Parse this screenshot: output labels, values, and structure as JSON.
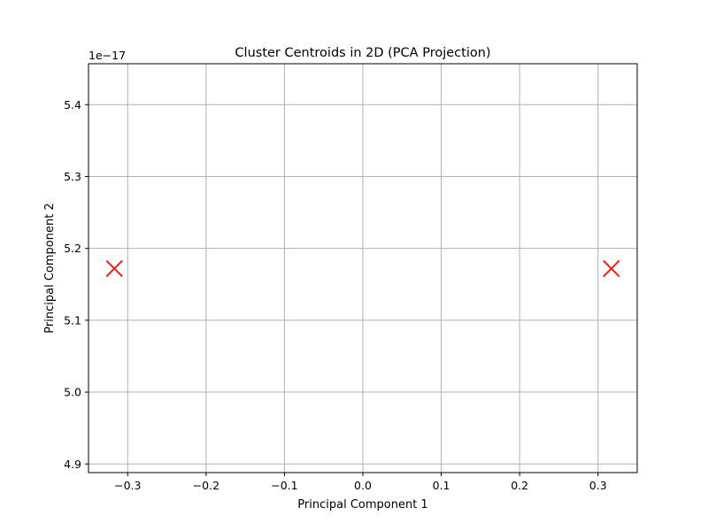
{
  "chart_data": {
    "type": "scatter",
    "title": "Cluster Centroids in 2D (PCA Projection)",
    "xlabel": "Principal Component 1",
    "ylabel": "Principal Component 2",
    "y_offset_label": "1e−17",
    "xlim": [
      -0.35,
      0.35
    ],
    "ylim": [
      4.888,
      5.457
    ],
    "x_ticks": [
      -0.3,
      -0.2,
      -0.1,
      0.0,
      0.1,
      0.2,
      0.3
    ],
    "x_tick_labels": [
      "−0.3",
      "−0.2",
      "−0.1",
      "0.0",
      "0.1",
      "0.2",
      "0.3"
    ],
    "y_ticks": [
      4.9,
      5.0,
      5.1,
      5.2,
      5.3,
      5.4
    ],
    "y_tick_labels": [
      "4.9",
      "5.0",
      "5.1",
      "5.2",
      "5.3",
      "5.4"
    ],
    "grid": true,
    "marker": "x",
    "marker_color": "#e8201a",
    "grid_color": "#b0b0b0",
    "points": [
      {
        "x": -0.317,
        "y": 5.172
      },
      {
        "x": 0.317,
        "y": 5.172
      }
    ]
  }
}
